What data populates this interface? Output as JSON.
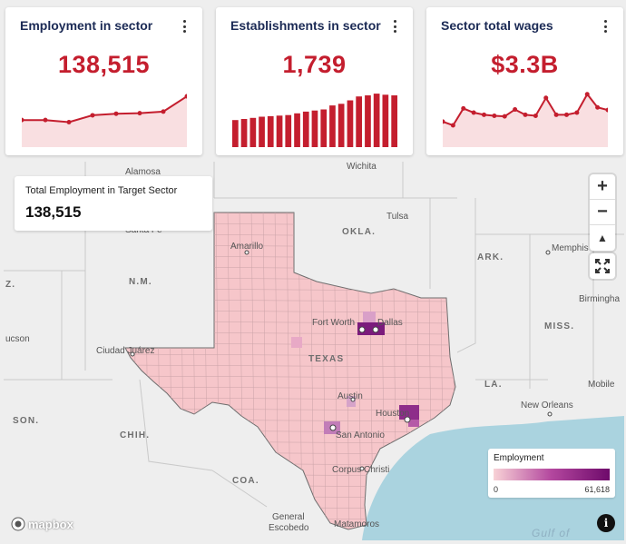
{
  "cards": [
    {
      "title": "Employment in sector",
      "value": "138,515",
      "chart": "line",
      "points": [
        0.48,
        0.48,
        0.44,
        0.57,
        0.6,
        0.61,
        0.64,
        0.93
      ]
    },
    {
      "title": "Establishments in sector",
      "value": "1,739",
      "chart": "bar",
      "points": [
        0.48,
        0.5,
        0.52,
        0.54,
        0.55,
        0.56,
        0.57,
        0.6,
        0.63,
        0.65,
        0.67,
        0.74,
        0.77,
        0.83,
        0.9,
        0.92,
        0.95,
        0.93,
        0.92
      ]
    },
    {
      "title": "Sector total wages",
      "value": "$3.3B",
      "chart": "line",
      "points": [
        0.45,
        0.38,
        0.7,
        0.62,
        0.58,
        0.56,
        0.55,
        0.68,
        0.58,
        0.56,
        0.9,
        0.58,
        0.58,
        0.62,
        0.97,
        0.72,
        0.67
      ]
    }
  ],
  "map": {
    "info_title": "Total Employment in Target Sector",
    "info_value": "138,515",
    "legend": {
      "title": "Employment",
      "min": "0",
      "max": "61,618"
    },
    "zoom_in": "+",
    "zoom_out": "−",
    "compass": "▲",
    "logo": "mapbox",
    "attribution": "i",
    "labels": {
      "alamosa": "Alamosa",
      "wichita": "Wichita",
      "santa_fe": "Santa Fe",
      "tulsa": "Tulsa",
      "okla": "OKLA.",
      "ark": "ARK.",
      "memphis": "Memphis",
      "amarillo": "Amarillo",
      "nm": "N.M.",
      "z": "Z.",
      "birmingham": "Birmingha",
      "fort_worth": "Fort Worth",
      "dallas": "Dallas",
      "miss": "MISS.",
      "ucson": "ucson",
      "ciudad_juarez": "Ciudad Juárez",
      "texas": "TEXAS",
      "la": "LA.",
      "mobile": "Mobile",
      "austin": "Austin",
      "new_orleans": "New Orleans",
      "houston": "Houston",
      "son": "SON.",
      "chih": "CHIH.",
      "san_antonio": "San Antonio",
      "corpus_christi": "Corpus Christi",
      "coa": "COA.",
      "general_escobedo_1": "General",
      "general_escobedo_2": "Escobedo",
      "matamoros": "Matamoros",
      "gulf": "Gulf of"
    }
  },
  "colors": {
    "accent": "#c41e2e",
    "title": "#1b2a55",
    "spark_fill": "#f9dfe1",
    "county": "#f6c6ca",
    "county_stroke": "#c9a3a7",
    "metro_low": "#d99ac7",
    "metro_high": "#7b1b7c",
    "water": "#aad3df"
  }
}
